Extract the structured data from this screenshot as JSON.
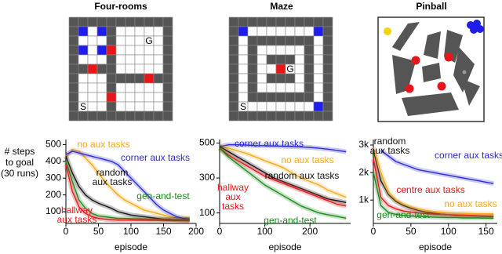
{
  "environments": [
    {
      "title": "Four-rooms",
      "goal": "G",
      "start": "S"
    },
    {
      "title": "Maze",
      "goal": "G",
      "start": "S"
    },
    {
      "title": "Pinball"
    }
  ],
  "chart_data": [
    {
      "type": "line",
      "xlabel": "episode",
      "ylabel": "# steps to goal (30 runs)",
      "x": [
        0,
        10,
        20,
        30,
        40,
        50,
        60,
        70,
        80,
        90,
        100,
        110,
        120,
        130,
        140,
        150,
        160,
        170,
        180,
        190
      ],
      "xlim": [
        0,
        200
      ],
      "xticks": [
        0,
        50,
        100,
        150,
        200
      ],
      "ylim": [
        30,
        530
      ],
      "yticks": [
        100,
        200,
        300,
        400,
        500
      ],
      "series": [
        {
          "name": "no aux tasks",
          "color": "#f5a81c",
          "values": [
            420,
            470,
            460,
            420,
            380,
            330,
            280,
            240,
            200,
            170,
            150,
            130,
            110,
            100,
            90,
            80,
            70,
            65,
            65,
            65
          ]
        },
        {
          "name": "corner aux tasks",
          "color": "#2a2ad8",
          "values": [
            440,
            460,
            450,
            440,
            430,
            420,
            410,
            400,
            380,
            340,
            300,
            260,
            220,
            180,
            140,
            110,
            90,
            70,
            60,
            55
          ]
        },
        {
          "name": "random aux tasks",
          "color": "#111111",
          "values": [
            430,
            330,
            250,
            200,
            170,
            150,
            135,
            120,
            100,
            90,
            80,
            75,
            70,
            65,
            60,
            55,
            55,
            52,
            50,
            50
          ]
        },
        {
          "name": "gen-and-test",
          "color": "#1a8a1a",
          "values": [
            400,
            280,
            170,
            120,
            90,
            75,
            70,
            65,
            60,
            60,
            58,
            57,
            56,
            55,
            55,
            54,
            54,
            53,
            53,
            52
          ]
        },
        {
          "name": "hallway aux tasks",
          "color": "#e8161a",
          "values": [
            380,
            220,
            130,
            90,
            70,
            60,
            55,
            52,
            50,
            50,
            50,
            49,
            49,
            48,
            48,
            48,
            47,
            47,
            47,
            46
          ]
        }
      ]
    },
    {
      "type": "line",
      "xlabel": "episode",
      "x": [
        0,
        20,
        40,
        60,
        80,
        100,
        120,
        140,
        160,
        180,
        200,
        220,
        240,
        260,
        280
      ],
      "xlim": [
        0,
        290
      ],
      "xticks": [
        0,
        100,
        200
      ],
      "ylim": [
        40,
        520
      ],
      "yticks": [
        100,
        300,
        500
      ],
      "series": [
        {
          "name": "corner aux tasks",
          "color": "#2a2ad8",
          "values": [
            480,
            490,
            490,
            488,
            485,
            485,
            483,
            482,
            480,
            478,
            475,
            470,
            465,
            458,
            450
          ]
        },
        {
          "name": "no aux tasks",
          "color": "#f5a81c",
          "values": [
            480,
            470,
            455,
            440,
            420,
            400,
            380,
            360,
            330,
            300,
            280,
            260,
            230,
            210,
            190
          ]
        },
        {
          "name": "random aux tasks",
          "color": "#111111",
          "values": [
            480,
            450,
            420,
            390,
            360,
            330,
            300,
            280,
            260,
            240,
            220,
            200,
            180,
            170,
            160
          ]
        },
        {
          "name": "hallway aux tasks",
          "color": "#e8161a",
          "values": [
            470,
            430,
            400,
            370,
            340,
            310,
            290,
            270,
            250,
            230,
            210,
            190,
            170,
            150,
            140
          ]
        },
        {
          "name": "gen-and-test",
          "color": "#1a8a1a",
          "values": [
            470,
            420,
            380,
            340,
            300,
            260,
            230,
            200,
            170,
            140,
            120,
            100,
            90,
            80,
            70
          ]
        }
      ]
    },
    {
      "type": "line",
      "xlabel": "episode",
      "x": [
        0,
        10,
        20,
        30,
        40,
        50,
        60,
        70,
        80,
        90,
        100,
        110,
        120,
        130,
        140,
        150,
        160
      ],
      "xlim": [
        0,
        165
      ],
      "xticks": [
        0,
        50,
        100,
        150
      ],
      "ylim": [
        150,
        3200
      ],
      "yticks": [
        {
          "value": 1000,
          "label": "1k"
        },
        {
          "value": 2000,
          "label": "2k"
        },
        {
          "value": 3000,
          "label": "3k"
        }
      ],
      "series": [
        {
          "name": "random aux tasks",
          "color": "#111111",
          "values": [
            2800,
            1700,
            1200,
            950,
            800,
            700,
            620,
            560,
            520,
            490,
            470,
            450,
            440,
            430,
            420,
            410,
            400
          ]
        },
        {
          "name": "corner aux tasks",
          "color": "#2a2ad8",
          "values": [
            null,
            2800,
            2600,
            2400,
            2300,
            2200,
            2100,
            2050,
            2000,
            1950,
            1900,
            1850,
            1800,
            1750,
            1700,
            1650,
            1600
          ]
        },
        {
          "name": "centre aux tasks",
          "color": "#e8161a",
          "values": [
            2500,
            1100,
            800,
            680,
            600,
            560,
            530,
            510,
            490,
            480,
            470,
            460,
            450,
            440,
            430,
            420,
            410
          ]
        },
        {
          "name": "no aux tasks",
          "color": "#f5a81c",
          "values": [
            2900,
            2000,
            1300,
            1000,
            850,
            750,
            680,
            620,
            580,
            560,
            540,
            530,
            520,
            510,
            500,
            500,
            500
          ]
        },
        {
          "name": "gen-and-test",
          "color": "#1a8a1a",
          "values": [
            2000,
            800,
            550,
            480,
            440,
            420,
            400,
            390,
            380,
            370,
            360,
            360,
            350,
            350,
            350,
            340,
            340
          ]
        }
      ]
    }
  ]
}
